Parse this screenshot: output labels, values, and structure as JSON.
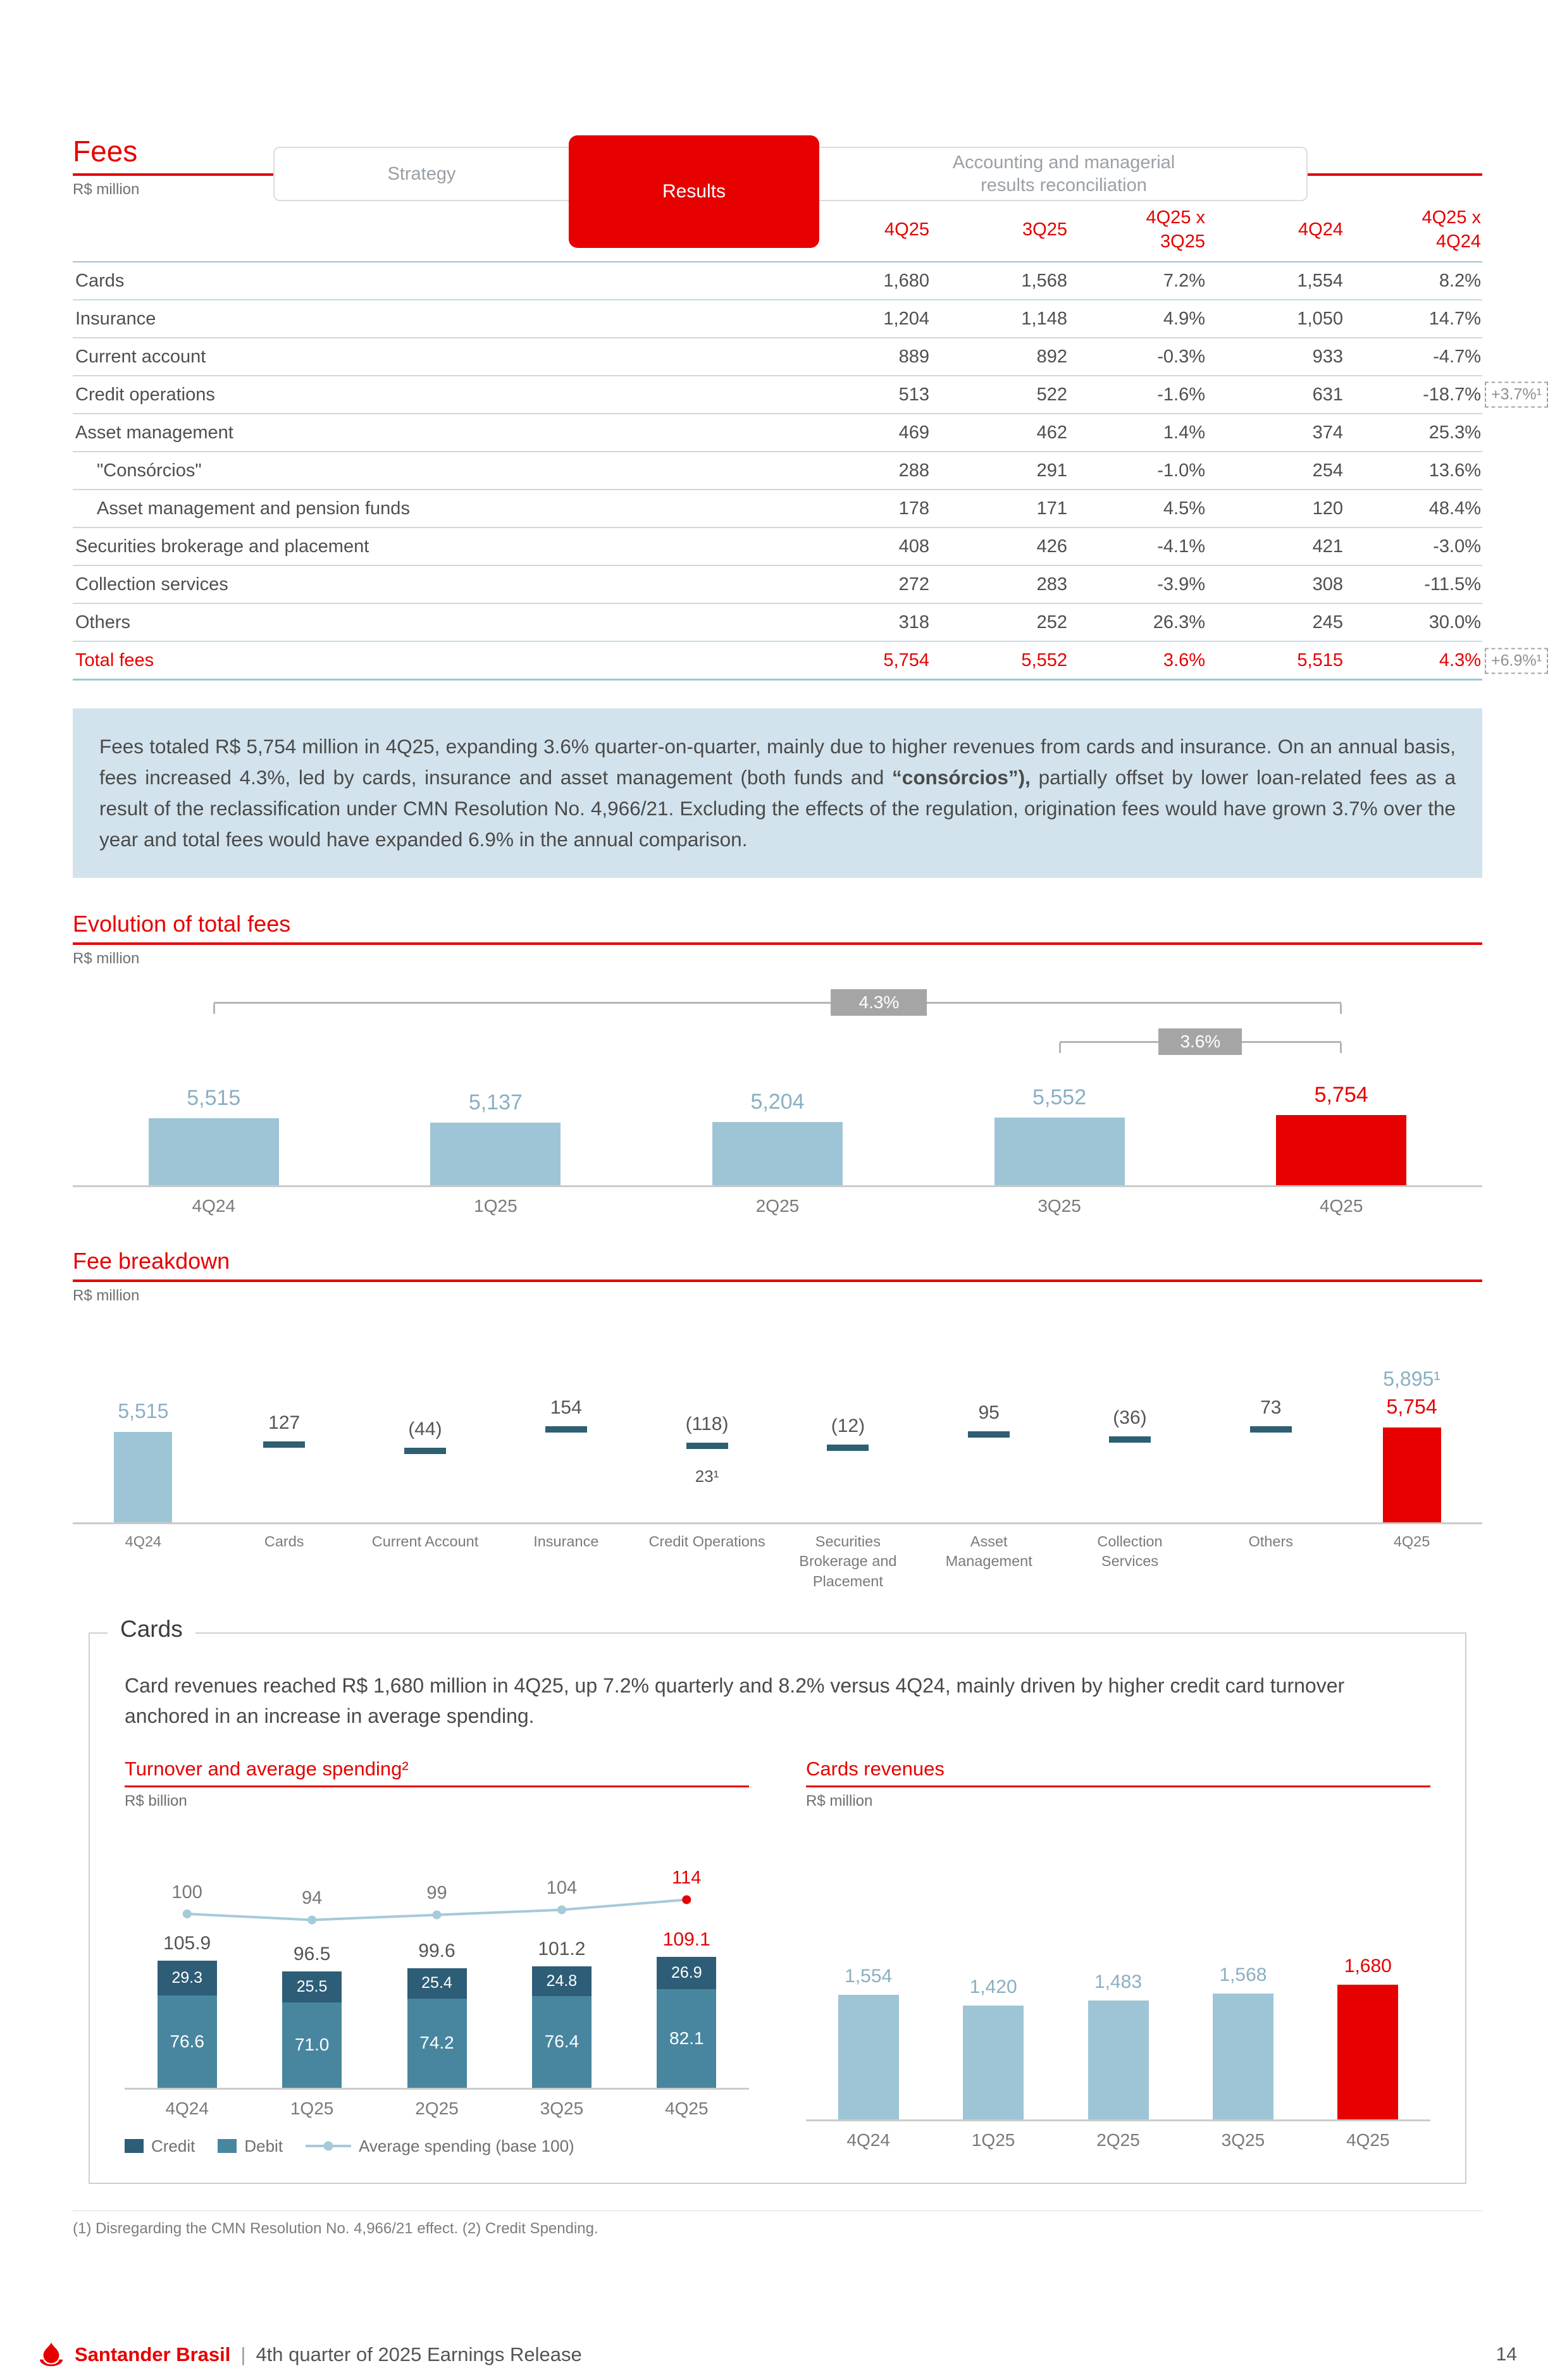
{
  "colors": {
    "accent": "#e60000",
    "bar_blue": "#9ec5d6",
    "credit_dark": "#2d5d77",
    "debit_teal": "#4886a0",
    "line_blue": "#a5cad9",
    "commentary_bg": "#d2e3ed"
  },
  "tabs": {
    "items": [
      {
        "label": "Strategy",
        "active": false
      },
      {
        "label": "Results",
        "active": true
      },
      {
        "label": "Accounting and managerial results reconciliation",
        "active": false
      }
    ]
  },
  "fees_table": {
    "title": "Fees",
    "unit": "R$ million",
    "col_headers": [
      "4Q25",
      "3Q25",
      "4Q25 x\n3Q25",
      "4Q24",
      "4Q25 x\n4Q24"
    ],
    "rows": [
      {
        "label": "Cards",
        "indent": false,
        "values": [
          "1,680",
          "1,568",
          "7.2%",
          "1,554",
          "8.2%"
        ]
      },
      {
        "label": "Insurance",
        "indent": false,
        "values": [
          "1,204",
          "1,148",
          "4.9%",
          "1,050",
          "14.7%"
        ]
      },
      {
        "label": "Current account",
        "indent": false,
        "values": [
          "889",
          "892",
          "-0.3%",
          "933",
          "-4.7%"
        ]
      },
      {
        "label": "Credit operations",
        "indent": false,
        "values": [
          "513",
          "522",
          "-1.6%",
          "631",
          "-18.7%"
        ],
        "annotation": "+3.7%¹"
      },
      {
        "label": "Asset management",
        "indent": false,
        "values": [
          "469",
          "462",
          "1.4%",
          "374",
          "25.3%"
        ]
      },
      {
        "label": "\"Consórcios\"",
        "indent": true,
        "values": [
          "288",
          "291",
          "-1.0%",
          "254",
          "13.6%"
        ]
      },
      {
        "label": "Asset management and pension funds",
        "indent": true,
        "values": [
          "178",
          "171",
          "4.5%",
          "120",
          "48.4%"
        ]
      },
      {
        "label": "Securities brokerage and placement",
        "indent": false,
        "values": [
          "408",
          "426",
          "-4.1%",
          "421",
          "-3.0%"
        ]
      },
      {
        "label": "Collection services",
        "indent": false,
        "values": [
          "272",
          "283",
          "-3.9%",
          "308",
          "-11.5%"
        ]
      },
      {
        "label": "Others",
        "indent": false,
        "values": [
          "318",
          "252",
          "26.3%",
          "245",
          "30.0%"
        ]
      }
    ],
    "total_row": {
      "label": "Total fees",
      "values": [
        "5,754",
        "5,552",
        "3.6%",
        "5,515",
        "4.3%"
      ],
      "annotation": "+6.9%¹"
    }
  },
  "commentary": {
    "parts": [
      {
        "text": "Fees totaled R$ 5,754 million in 4Q25, expanding 3.6% quarter-on-quarter, mainly due to higher revenues from cards and insurance. On an annual basis, fees increased 4.3%, led by cards, insurance and asset management (both funds and ",
        "bold": false
      },
      {
        "text": "“consórcios”),",
        "bold": true
      },
      {
        "text": " partially offset by lower loan-related fees as a result of the reclassification under CMN Resolution No. 4,966/21. Excluding the effects of the regulation, origination fees would have grown 3.7% over the year and total fees would have expanded 6.9% in the annual comparison.",
        "bold": false
      }
    ]
  },
  "chart_data": [
    {
      "id": "evolution",
      "type": "bar",
      "title": "Evolution of total fees",
      "unit": "R$ million",
      "categories": [
        "4Q24",
        "1Q25",
        "2Q25",
        "3Q25",
        "4Q25"
      ],
      "values": [
        5515,
        5137,
        5204,
        5552,
        5754
      ],
      "labels": [
        "5,515",
        "5,137",
        "5,204",
        "5,552",
        "5,754"
      ],
      "highlight_last": true,
      "annotations": [
        {
          "label": "4.3%",
          "from": "4Q24",
          "to": "4Q25"
        },
        {
          "label": "3.6%",
          "from": "3Q25",
          "to": "4Q25"
        }
      ]
    },
    {
      "id": "breakdown",
      "type": "waterfall",
      "title": "Fee breakdown",
      "unit": "R$ million",
      "start": {
        "category": "4Q24",
        "value": 5515,
        "label": "5,515"
      },
      "steps": [
        {
          "category": "Cards",
          "value": 127,
          "label": "127"
        },
        {
          "category": "Current Account",
          "value": -44,
          "label": "(44)"
        },
        {
          "category": "Insurance",
          "value": 154,
          "label": "154"
        },
        {
          "category": "Credit Operations",
          "value": -118,
          "label": "(118)",
          "sublabel": "23¹"
        },
        {
          "category": "Securities Brokerage and Placement",
          "value": -12,
          "label": "(12)"
        },
        {
          "category": "Asset Management",
          "value": 95,
          "label": "95"
        },
        {
          "category": "Collection Services",
          "value": -36,
          "label": "(36)"
        },
        {
          "category": "Others",
          "value": 73,
          "label": "73"
        }
      ],
      "end": {
        "category": "4Q25",
        "value": 5754,
        "label": "5,754",
        "adj_label": "5,895¹"
      }
    },
    {
      "id": "turnover",
      "type": "stacked-bar-line",
      "title": "Turnover and average spending²",
      "unit": "R$ billion",
      "categories": [
        "4Q24",
        "1Q25",
        "2Q25",
        "3Q25",
        "4Q25"
      ],
      "series": [
        {
          "name": "Credit",
          "values": [
            29.3,
            25.5,
            25.4,
            24.8,
            26.9
          ]
        },
        {
          "name": "Debit",
          "values": [
            76.6,
            71.0,
            74.2,
            76.4,
            82.1
          ]
        }
      ],
      "totals": [
        "105.9",
        "96.5",
        "99.6",
        "101.2",
        "109.1"
      ],
      "line": {
        "name": "Average spending (base 100)",
        "values": [
          100,
          94,
          99,
          104,
          114
        ]
      },
      "highlight_last": true
    },
    {
      "id": "cards_revenues",
      "type": "bar",
      "title": "Cards revenues",
      "unit": "R$ million",
      "categories": [
        "4Q24",
        "1Q25",
        "2Q25",
        "3Q25",
        "4Q25"
      ],
      "values": [
        1554,
        1420,
        1483,
        1568,
        1680
      ],
      "labels": [
        "1,554",
        "1,420",
        "1,483",
        "1,568",
        "1,680"
      ],
      "highlight_last": true
    }
  ],
  "cards_section": {
    "title": "Cards",
    "commentary": "Card revenues reached R$ 1,680 million in 4Q25, up 7.2% quarterly and 8.2% versus 4Q24, mainly driven by higher credit card turnover anchored in an increase in average spending."
  },
  "footnote": "(1) Disregarding the CMN Resolution No. 4,966/21 effect.  (2) Credit Spending.",
  "footer": {
    "brand": "Santander Brasil",
    "separator": "|",
    "text": "4th quarter of 2025 Earnings Release",
    "page": "14"
  }
}
